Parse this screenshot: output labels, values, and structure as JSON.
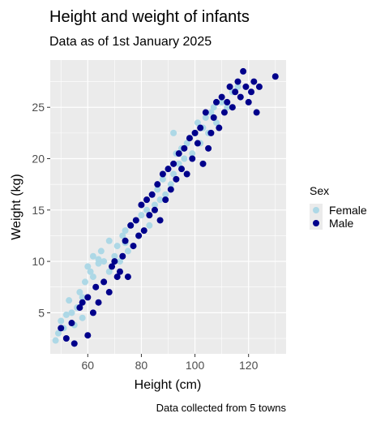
{
  "chart_data": {
    "type": "scatter",
    "title": "Height and weight of infants",
    "subtitle": "Data as of 1st January 2025",
    "xlabel": "Height (cm)",
    "ylabel": "Weight (kg)",
    "caption": "Data collected from 5 towns",
    "xlim": [
      46,
      134
    ],
    "ylim": [
      1.0,
      29.6
    ],
    "x_ticks": [
      60,
      80,
      100,
      120
    ],
    "y_ticks": [
      5,
      10,
      15,
      20,
      25
    ],
    "grid": true,
    "legend": {
      "title": "Sex",
      "position": "right"
    },
    "series": [
      {
        "name": "Female",
        "color": "#add8e6",
        "points": [
          [
            48,
            2.3
          ],
          [
            49,
            3.0
          ],
          [
            50,
            4.2
          ],
          [
            51,
            3.5
          ],
          [
            52,
            4.8
          ],
          [
            53,
            6.2
          ],
          [
            54,
            5.0
          ],
          [
            55,
            3.8
          ],
          [
            56,
            5.5
          ],
          [
            57,
            7.0
          ],
          [
            58,
            6.5
          ],
          [
            59,
            8.0
          ],
          [
            60,
            9.5
          ],
          [
            61,
            9.0
          ],
          [
            62,
            8.5
          ],
          [
            62,
            10.5
          ],
          [
            63,
            7.5
          ],
          [
            64,
            9.8
          ],
          [
            65,
            11.0
          ],
          [
            66,
            10.0
          ],
          [
            68,
            9.0
          ],
          [
            68,
            12.0
          ],
          [
            70,
            10.5
          ],
          [
            71,
            11.5
          ],
          [
            73,
            12.5
          ],
          [
            74,
            13.0
          ],
          [
            75,
            11.0
          ],
          [
            76,
            13.5
          ],
          [
            78,
            14.0
          ],
          [
            79,
            12.5
          ],
          [
            80,
            14.5
          ],
          [
            82,
            15.0
          ],
          [
            83,
            13.5
          ],
          [
            84,
            16.5
          ],
          [
            85,
            15.5
          ],
          [
            86,
            17.0
          ],
          [
            87,
            16.0
          ],
          [
            88,
            18.0
          ],
          [
            89,
            16.5
          ],
          [
            90,
            19.0
          ],
          [
            91,
            17.5
          ],
          [
            92,
            18.5
          ],
          [
            93,
            20.5
          ],
          [
            94,
            19.5
          ],
          [
            95,
            21.0
          ],
          [
            96,
            20.0
          ],
          [
            97,
            21.5
          ],
          [
            98,
            22.0
          ],
          [
            99,
            20.5
          ],
          [
            100,
            22.5
          ],
          [
            101,
            23.5
          ],
          [
            102,
            21.5
          ],
          [
            103,
            23.0
          ],
          [
            104,
            24.0
          ],
          [
            105,
            22.5
          ],
          [
            106,
            24.5
          ],
          [
            107,
            25.0
          ],
          [
            108,
            23.5
          ],
          [
            110,
            25.5
          ],
          [
            112,
            25.0
          ],
          [
            114,
            26.5
          ],
          [
            116,
            27.0
          ],
          [
            66,
            8.0
          ],
          [
            72,
            10.0
          ],
          [
            58,
            4.5
          ],
          [
            92,
            22.5
          ],
          [
            64,
            10.2
          ],
          [
            74,
            11.8
          ]
        ]
      },
      {
        "name": "Male",
        "color": "#00008b",
        "points": [
          [
            50,
            3.5
          ],
          [
            52,
            2.5
          ],
          [
            54,
            4.0
          ],
          [
            55,
            2.0
          ],
          [
            57,
            5.5
          ],
          [
            58,
            6.0
          ],
          [
            60,
            2.8
          ],
          [
            60,
            6.5
          ],
          [
            62,
            5.0
          ],
          [
            63,
            7.5
          ],
          [
            64,
            6.0
          ],
          [
            66,
            8.0
          ],
          [
            68,
            7.0
          ],
          [
            69,
            9.5
          ],
          [
            70,
            10.0
          ],
          [
            71,
            8.5
          ],
          [
            72,
            9.0
          ],
          [
            73,
            10.5
          ],
          [
            74,
            12.0
          ],
          [
            75,
            8.5
          ],
          [
            76,
            13.5
          ],
          [
            77,
            11.5
          ],
          [
            78,
            14.0
          ],
          [
            79,
            12.5
          ],
          [
            80,
            15.5
          ],
          [
            81,
            13.0
          ],
          [
            82,
            16.0
          ],
          [
            83,
            14.5
          ],
          [
            84,
            16.5
          ],
          [
            85,
            15.0
          ],
          [
            86,
            17.5
          ],
          [
            87,
            14.0
          ],
          [
            88,
            18.5
          ],
          [
            89,
            16.0
          ],
          [
            90,
            19.0
          ],
          [
            91,
            17.0
          ],
          [
            92,
            19.5
          ],
          [
            93,
            18.0
          ],
          [
            94,
            20.5
          ],
          [
            95,
            19.0
          ],
          [
            96,
            21.0
          ],
          [
            97,
            18.5
          ],
          [
            98,
            22.0
          ],
          [
            99,
            20.0
          ],
          [
            100,
            22.5
          ],
          [
            101,
            21.5
          ],
          [
            102,
            23.0
          ],
          [
            103,
            19.5
          ],
          [
            104,
            24.5
          ],
          [
            105,
            21.0
          ],
          [
            106,
            22.5
          ],
          [
            107,
            24.0
          ],
          [
            108,
            25.5
          ],
          [
            109,
            23.0
          ],
          [
            110,
            26.0
          ],
          [
            111,
            24.5
          ],
          [
            112,
            25.5
          ],
          [
            113,
            27.0
          ],
          [
            114,
            25.0
          ],
          [
            115,
            26.5
          ],
          [
            116,
            27.5
          ],
          [
            117,
            26.0
          ],
          [
            118,
            28.5
          ],
          [
            119,
            27.0
          ],
          [
            120,
            25.5
          ],
          [
            121,
            26.5
          ],
          [
            122,
            27.5
          ],
          [
            123,
            24.5
          ],
          [
            124,
            27.0
          ],
          [
            130,
            28.0
          ]
        ]
      }
    ]
  }
}
